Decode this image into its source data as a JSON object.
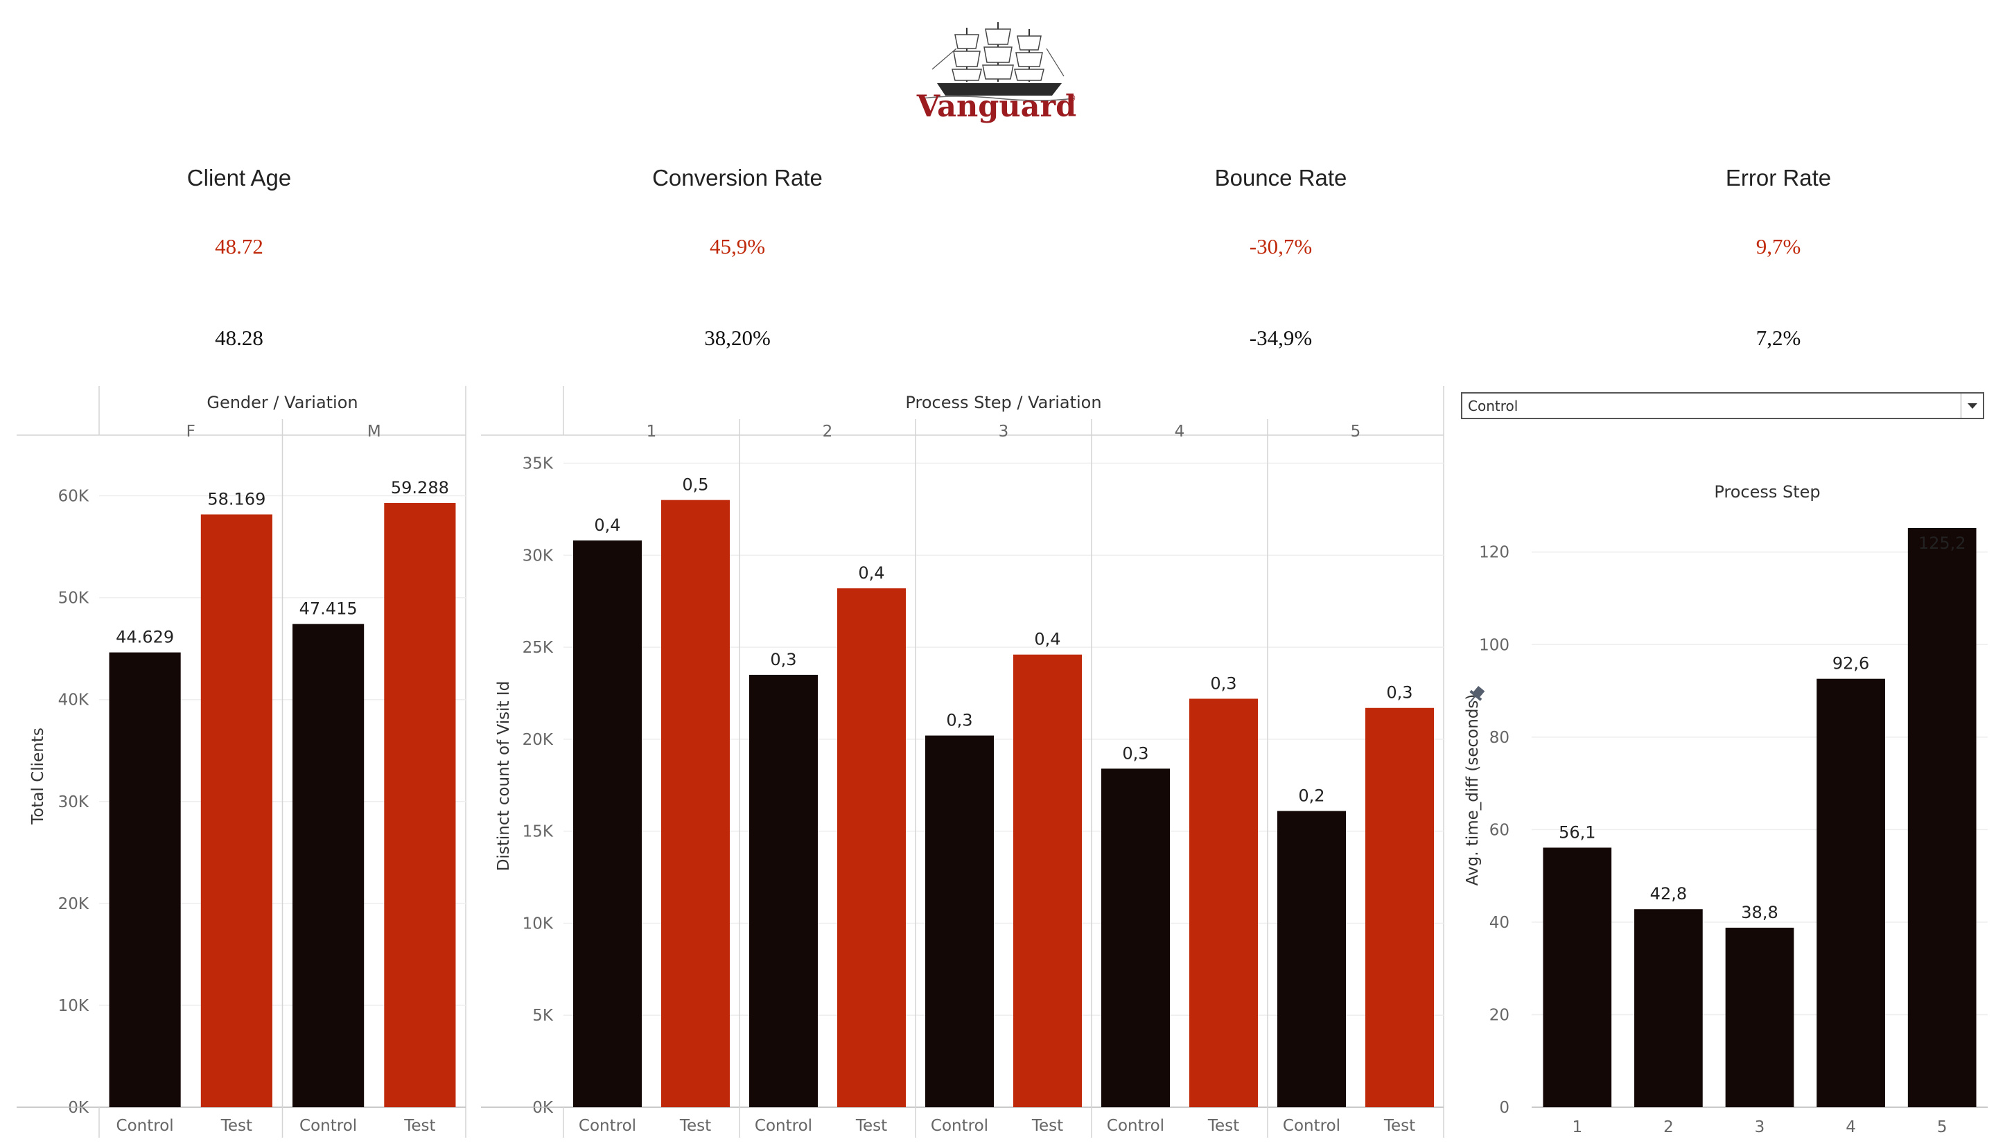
{
  "logo": {
    "text": "Vanguard"
  },
  "kpis": [
    {
      "title": "Client Age",
      "test_value": "48.72",
      "control_value": "48.28"
    },
    {
      "title": "Conversion Rate",
      "test_value": "45,9%",
      "control_value": "38,20%"
    },
    {
      "title": "Bounce Rate",
      "test_value": "-30,7%",
      "control_value": "-34,9%"
    },
    {
      "title": "Error Rate",
      "test_value": "9,7%",
      "control_value": "7,2%"
    }
  ],
  "colors": {
    "control": "#140806",
    "test": "#c0280a",
    "accent_text": "#c0280a",
    "grid": "#eeeeee"
  },
  "filter": {
    "selected": "Control"
  },
  "chart_data": [
    {
      "type": "bar",
      "header": "Gender / Variation",
      "groups": [
        "F",
        "M"
      ],
      "categories": [
        "Control",
        "Test"
      ],
      "series": [
        {
          "group": "F",
          "values": [
            44629,
            58169
          ],
          "labels": [
            "44.629",
            "58.169"
          ]
        },
        {
          "group": "M",
          "values": [
            47415,
            59288
          ],
          "labels": [
            "47.415",
            "59.288"
          ]
        }
      ],
      "ylabel": "Total Clients",
      "ylim": [
        0,
        65000
      ],
      "yticks": [
        0,
        10000,
        20000,
        30000,
        40000,
        50000,
        60000
      ],
      "ytick_labels": [
        "0K",
        "10K",
        "20K",
        "30K",
        "40K",
        "50K",
        "60K"
      ]
    },
    {
      "type": "bar",
      "header": "Process Step / Variation",
      "groups": [
        "1",
        "2",
        "3",
        "4",
        "5"
      ],
      "categories": [
        "Control",
        "Test"
      ],
      "series": [
        {
          "group": "1",
          "values": [
            30800,
            33000
          ],
          "labels": [
            "0,4",
            "0,5"
          ]
        },
        {
          "group": "2",
          "values": [
            23500,
            28200
          ],
          "labels": [
            "0,3",
            "0,4"
          ]
        },
        {
          "group": "3",
          "values": [
            20200,
            24600
          ],
          "labels": [
            "0,3",
            "0,4"
          ]
        },
        {
          "group": "4",
          "values": [
            18400,
            22200
          ],
          "labels": [
            "0,3",
            "0,3"
          ]
        },
        {
          "group": "5",
          "values": [
            16100,
            21700
          ],
          "labels": [
            "0,2",
            "0,3"
          ]
        }
      ],
      "ylabel": "Distinct count of Visit Id",
      "ylim": [
        0,
        36000
      ],
      "yticks": [
        0,
        5000,
        10000,
        15000,
        20000,
        25000,
        30000,
        35000
      ],
      "ytick_labels": [
        "0K",
        "5K",
        "10K",
        "15K",
        "20K",
        "25K",
        "30K",
        "35K"
      ]
    },
    {
      "type": "bar",
      "title": "Process Step",
      "categories": [
        "1",
        "2",
        "3",
        "4",
        "5"
      ],
      "values": [
        56.1,
        42.8,
        38.8,
        92.6,
        125.2
      ],
      "labels": [
        "56,1",
        "42,8",
        "38,8",
        "92,6",
        "125,2"
      ],
      "ylabel": "Avg. time_diff (seconds)",
      "ylim": [
        0,
        125.2
      ],
      "yticks": [
        0,
        20,
        40,
        60,
        80,
        100,
        120
      ],
      "ytick_labels": [
        "0",
        "20",
        "40",
        "60",
        "80",
        "100",
        "120"
      ]
    }
  ]
}
